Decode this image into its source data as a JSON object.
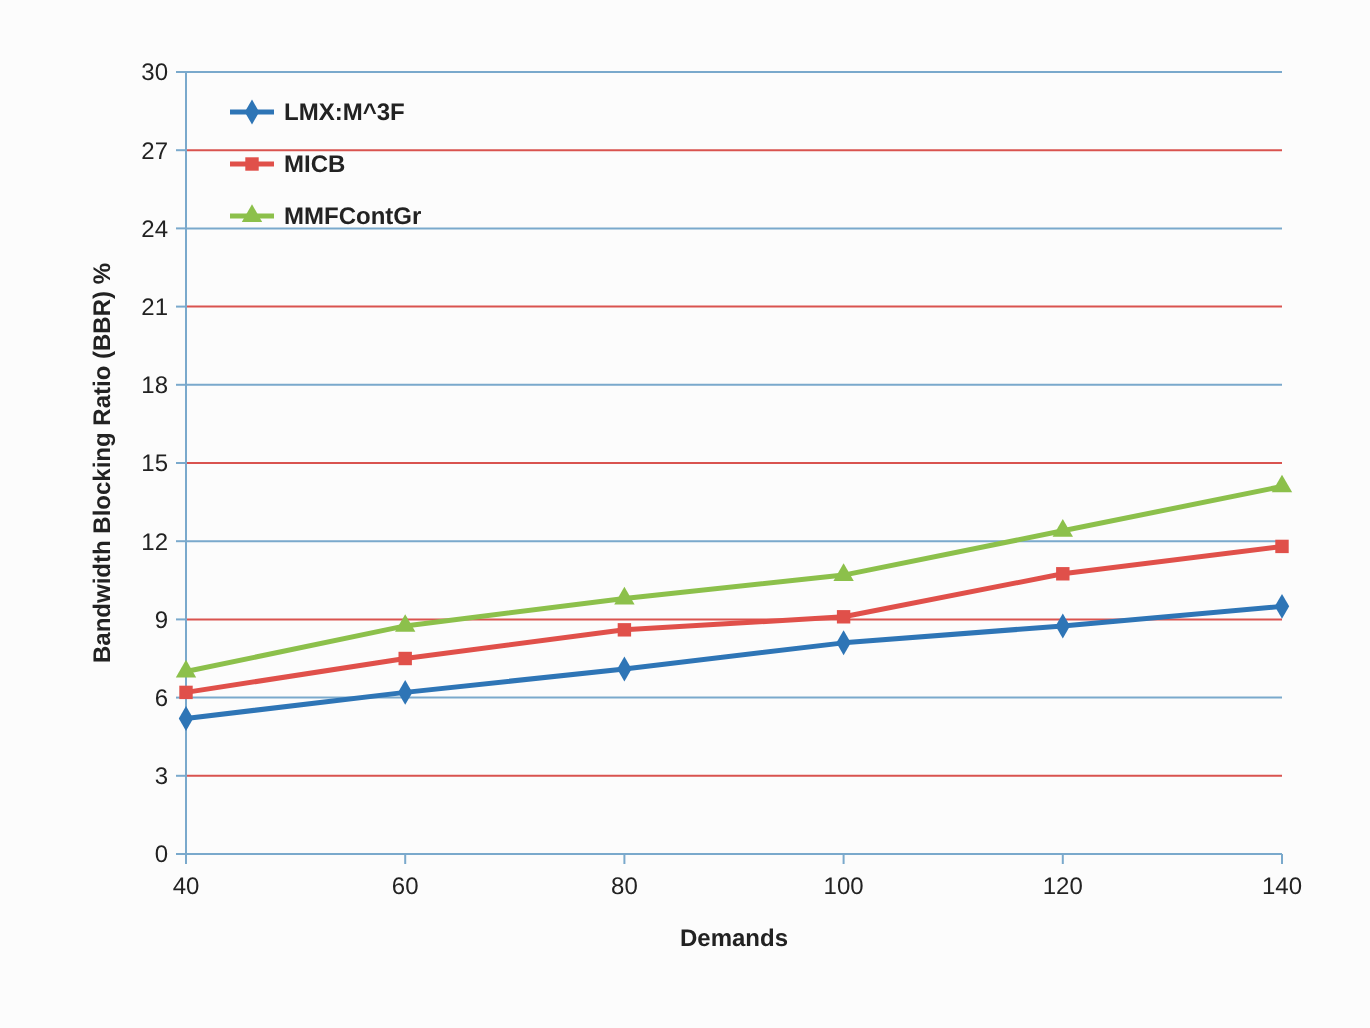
{
  "chart_data": {
    "type": "line",
    "xlabel": "Demands",
    "ylabel": "Bandwidth Blocking Ratio (BBR) %",
    "x": [
      40,
      60,
      80,
      100,
      120,
      140
    ],
    "xlim": [
      40,
      140
    ],
    "xticks": [
      40,
      60,
      80,
      100,
      120,
      140
    ],
    "ylim": [
      0,
      30
    ],
    "yticks": [
      0,
      3,
      6,
      9,
      12,
      15,
      18,
      21,
      24,
      27,
      30
    ],
    "grid": "y",
    "legend": "top left",
    "series": [
      {
        "name": "LMX:M^3F",
        "color": "#2e75b6",
        "marker": "diamond",
        "values": [
          5.2,
          6.2,
          7.1,
          8.1,
          8.75,
          9.5
        ]
      },
      {
        "name": "MICB",
        "color": "#e0504a",
        "marker": "square",
        "values": [
          6.2,
          7.5,
          8.6,
          9.1,
          10.75,
          11.8
        ]
      },
      {
        "name": "MMFContGr",
        "color": "#8cc04b",
        "marker": "triangle",
        "values": [
          7.0,
          8.75,
          9.8,
          10.7,
          12.4,
          14.1
        ]
      }
    ]
  }
}
